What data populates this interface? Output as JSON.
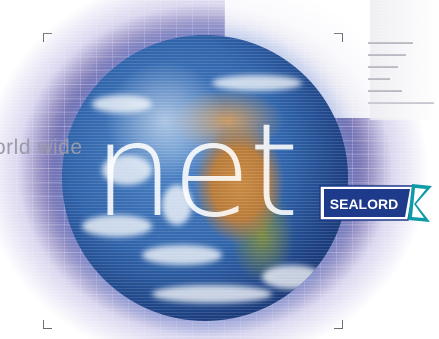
{
  "banner": {
    "worldwide_text": "orld wide",
    "net_text": "net",
    "logo_text": "SEALORD"
  },
  "colors": {
    "space": "#1c1660",
    "logo_blue": "#1e3a8a",
    "logo_teal": "#0e9aa7",
    "menu_lines": "#b9bac3"
  },
  "icons": [
    "menu-lines-icon",
    "frame-corner-icon",
    "globe-icon"
  ]
}
